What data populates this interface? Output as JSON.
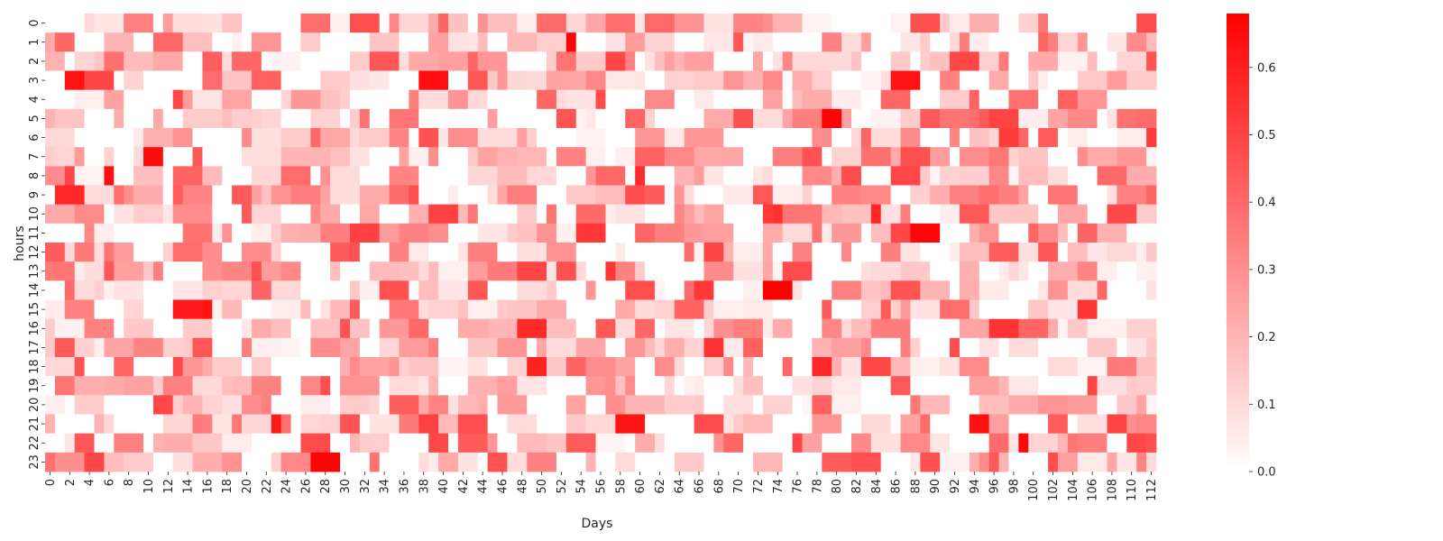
{
  "chart_data": {
    "type": "heatmap",
    "title": "",
    "xlabel": "Days",
    "ylabel": "hours",
    "x_count": 113,
    "y_count": 24,
    "x_ticks": [
      0,
      2,
      4,
      6,
      8,
      10,
      12,
      14,
      16,
      18,
      20,
      22,
      24,
      26,
      28,
      30,
      32,
      34,
      36,
      38,
      40,
      42,
      44,
      46,
      48,
      50,
      52,
      54,
      56,
      58,
      60,
      62,
      64,
      66,
      68,
      70,
      72,
      74,
      76,
      78,
      80,
      82,
      84,
      86,
      88,
      90,
      92,
      94,
      96,
      98,
      100,
      102,
      104,
      106,
      108,
      110,
      112
    ],
    "y_ticks": [
      0,
      1,
      2,
      3,
      4,
      5,
      6,
      7,
      8,
      9,
      10,
      11,
      12,
      13,
      14,
      15,
      16,
      17,
      18,
      19,
      20,
      21,
      22,
      23
    ],
    "colorbar": {
      "vmin": 0,
      "vmax": 0.68,
      "ticks": [
        0.0,
        0.1,
        0.2,
        0.3,
        0.4,
        0.5,
        0.6
      ],
      "tick_labels": [
        "0.0",
        "0.1",
        "0.2",
        "0.3",
        "0.4",
        "0.5",
        "0.6"
      ]
    },
    "colormap": {
      "low": "#ffffff",
      "high": "#ff0000"
    },
    "values": "approximate random per-cell intensities in range 0–0.68 (see seed)",
    "seed": 20240531
  }
}
